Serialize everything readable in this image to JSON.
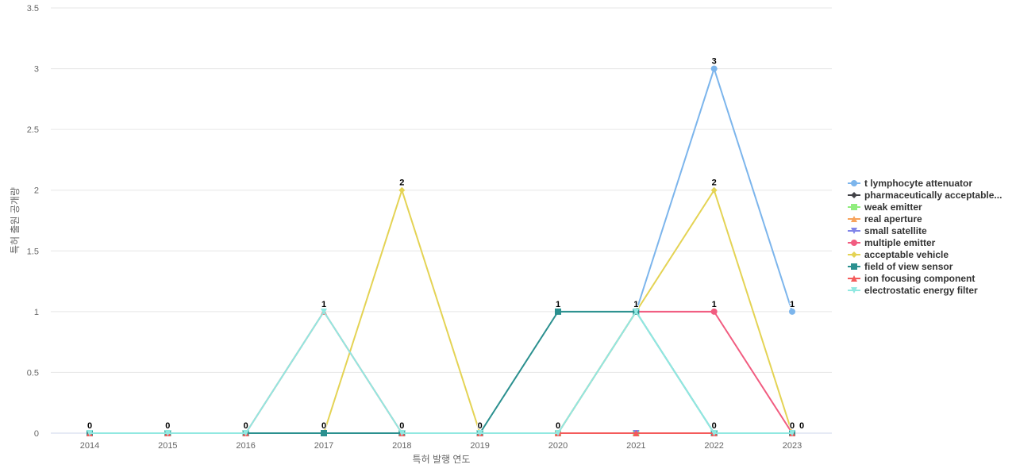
{
  "chart_data": {
    "type": "line",
    "xlabel": "특허 발행 연도",
    "ylabel": "특허 출원 공개량",
    "ylim": [
      0,
      3.5
    ],
    "yticks": [
      "0",
      "0.5",
      "1",
      "1.5",
      "2",
      "2.5",
      "3",
      "3.5"
    ],
    "categories": [
      "2014",
      "2015",
      "2016",
      "2017",
      "2018",
      "2019",
      "2020",
      "2021",
      "2022",
      "2023"
    ],
    "legend_position": "right",
    "series": [
      {
        "name": "t lymphocyte attenuator",
        "color": "#7cb5ec",
        "marker": "circle",
        "values": [
          0,
          0,
          0,
          0,
          0,
          0,
          0,
          1,
          3,
          1
        ]
      },
      {
        "name": "pharmaceutically acceptable...",
        "color": "#434348",
        "marker": "diamond",
        "values": [
          0,
          0,
          0,
          0,
          0,
          0,
          0,
          0,
          0,
          0
        ]
      },
      {
        "name": "weak emitter",
        "color": "#90ed7d",
        "marker": "square",
        "values": [
          0,
          0,
          0,
          0,
          0,
          0,
          0,
          0,
          0,
          0
        ]
      },
      {
        "name": "real aperture",
        "color": "#f7a35c",
        "marker": "triangle",
        "values": [
          0,
          0,
          0,
          0,
          0,
          0,
          0,
          0,
          0,
          0
        ]
      },
      {
        "name": "small satellite",
        "color": "#8085e9",
        "marker": "triangle-down",
        "values": [
          0,
          0,
          0,
          0,
          0,
          0,
          0,
          0,
          0,
          0
        ]
      },
      {
        "name": "multiple emitter",
        "color": "#f15c80",
        "marker": "circle",
        "values": [
          0,
          0,
          0,
          0,
          0,
          0,
          0,
          1,
          1,
          0
        ]
      },
      {
        "name": "acceptable vehicle",
        "color": "#e4d354",
        "marker": "diamond",
        "values": [
          0,
          0,
          0,
          0,
          2,
          0,
          0,
          1,
          2,
          0
        ]
      },
      {
        "name": "field of view sensor",
        "color": "#2b908f",
        "marker": "square",
        "values": [
          0,
          0,
          0,
          0,
          0,
          0,
          1,
          1,
          0,
          0
        ]
      },
      {
        "name": "ion focusing component",
        "color": "#f45b5b",
        "marker": "triangle",
        "values": [
          0,
          0,
          0,
          1,
          0,
          0,
          0,
          0,
          0,
          0
        ]
      },
      {
        "name": "electrostatic energy filter",
        "color": "#91e8e1",
        "marker": "triangle-down",
        "values": [
          0,
          0,
          0,
          1,
          0,
          0,
          0,
          1,
          0,
          0
        ]
      }
    ],
    "data_labels": [
      "0",
      "0",
      "0",
      "1",
      "2",
      "0",
      "1",
      "1",
      "3",
      "1"
    ],
    "data_labels_2": [
      null,
      null,
      null,
      "0",
      "0",
      null,
      "0",
      null,
      "2",
      "0"
    ],
    "data_labels_3": [
      null,
      null,
      null,
      null,
      null,
      null,
      null,
      null,
      "1",
      null
    ],
    "data_labels_4": [
      null,
      null,
      null,
      null,
      null,
      null,
      null,
      null,
      "0",
      "0"
    ]
  }
}
